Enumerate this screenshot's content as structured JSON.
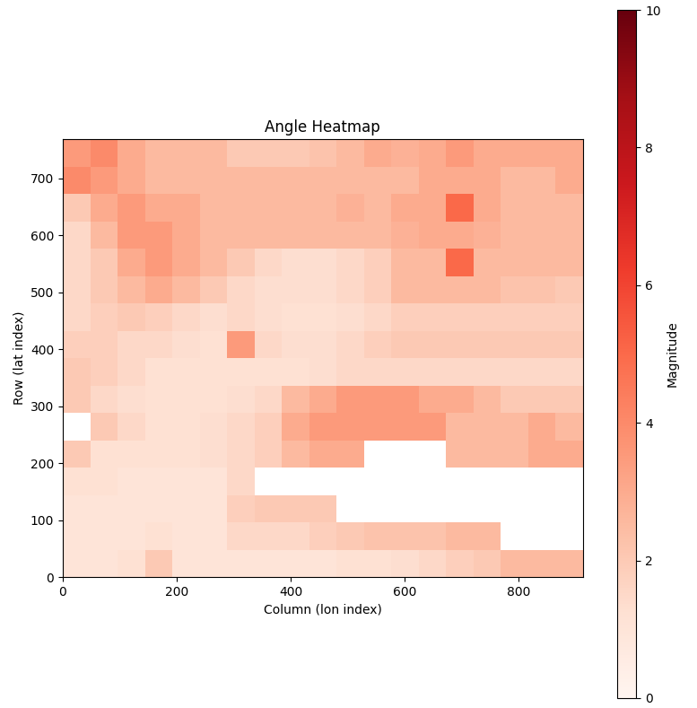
{
  "chart_data": {
    "type": "heatmap",
    "title": "Angle Heatmap",
    "x_label": "Column (lon index)",
    "y_label": "Row (lat index)",
    "xlim": [
      0,
      912
    ],
    "ylim": [
      0,
      768
    ],
    "xticks": [
      0,
      200,
      400,
      600,
      800
    ],
    "yticks": [
      0,
      100,
      200,
      300,
      400,
      500,
      600,
      700
    ],
    "colorbar_label": "Magnitude",
    "colorbar_range": [
      0,
      10
    ],
    "colorbar_ticks": [
      0,
      2,
      4,
      6,
      8,
      10
    ],
    "cells": [
      [
        1,
        1,
        1.2,
        2,
        1,
        1,
        1,
        1,
        1,
        1,
        1.2,
        1.2,
        1.3,
        1.5,
        1.8,
        2,
        2.5,
        2.5,
        2.5
      ],
      [
        1,
        1,
        1,
        1.2,
        1,
        1,
        1.5,
        1.5,
        1.5,
        1.8,
        2,
        2.2,
        2.2,
        2.2,
        2.5,
        2.5,
        null,
        null,
        null
      ],
      [
        1,
        1,
        1,
        1,
        1,
        1,
        1.8,
        2,
        2,
        2,
        null,
        null,
        null,
        null,
        null,
        null,
        null,
        null,
        null
      ],
      [
        1.2,
        1.2,
        1,
        1,
        1,
        1,
        1.5,
        null,
        null,
        null,
        null,
        null,
        null,
        null,
        null,
        null,
        null,
        null,
        null
      ],
      [
        2,
        1.2,
        1.2,
        1.2,
        1.2,
        1.3,
        1.5,
        1.8,
        2.5,
        3,
        3,
        null,
        null,
        null,
        2.5,
        2.5,
        2.5,
        3,
        3
      ],
      [
        null,
        2,
        1.5,
        1.2,
        1.2,
        1.3,
        1.5,
        1.8,
        3,
        3.5,
        3.5,
        3.5,
        3.5,
        3.5,
        2.5,
        2.5,
        2.5,
        3,
        2.5
      ],
      [
        2,
        1.5,
        1.3,
        1.2,
        1.2,
        1.2,
        1.3,
        1.5,
        2.5,
        3,
        3.5,
        3.5,
        3.5,
        3,
        3,
        2.5,
        2,
        2,
        2
      ],
      [
        2,
        1.8,
        1.5,
        1.2,
        1.2,
        1.2,
        1.2,
        1.2,
        1.2,
        1.3,
        1.5,
        1.5,
        1.5,
        1.5,
        1.5,
        1.5,
        1.5,
        1.5,
        1.5
      ],
      [
        1.8,
        1.8,
        1.5,
        1.5,
        1.3,
        1.2,
        3.5,
        1.5,
        1.3,
        1.3,
        1.5,
        1.8,
        2,
        2,
        2,
        2,
        2,
        2,
        2
      ],
      [
        1.5,
        1.8,
        2,
        1.8,
        1.5,
        1.3,
        1.5,
        1.3,
        1.2,
        1.2,
        1.3,
        1.5,
        1.8,
        1.8,
        1.8,
        1.8,
        1.8,
        1.8,
        1.8
      ],
      [
        1.5,
        2,
        2.5,
        3,
        2.5,
        2,
        1.5,
        1.3,
        1.3,
        1.3,
        1.5,
        1.8,
        2.5,
        2.5,
        2.5,
        2.5,
        2.2,
        2.2,
        2
      ],
      [
        1.5,
        2,
        3,
        3.5,
        3,
        2.5,
        2,
        1.5,
        1.3,
        1.3,
        1.5,
        1.8,
        2.5,
        2.5,
        5,
        2.5,
        2.5,
        2.5,
        2.5
      ],
      [
        1.5,
        2.5,
        3.5,
        3.5,
        3,
        2.5,
        2.5,
        2.5,
        2.5,
        2.5,
        2.5,
        2.5,
        2.8,
        3,
        3,
        2.8,
        2.5,
        2.5,
        2.5
      ],
      [
        2,
        3,
        3.5,
        3,
        3,
        2.5,
        2.5,
        2.5,
        2.5,
        2.5,
        2.8,
        2.5,
        3,
        3,
        5,
        3,
        2.5,
        2.5,
        2.5
      ],
      [
        4,
        3.5,
        3,
        2.5,
        2.5,
        2.5,
        2.5,
        2.5,
        2.5,
        2.5,
        2.5,
        2.5,
        2.5,
        3,
        3,
        3,
        2.5,
        2.5,
        3
      ],
      [
        3.5,
        4,
        3,
        2.5,
        2.5,
        2.5,
        2,
        2,
        2,
        2.2,
        2.5,
        3,
        2.8,
        3,
        3.5,
        3,
        3,
        3,
        3
      ]
    ]
  }
}
